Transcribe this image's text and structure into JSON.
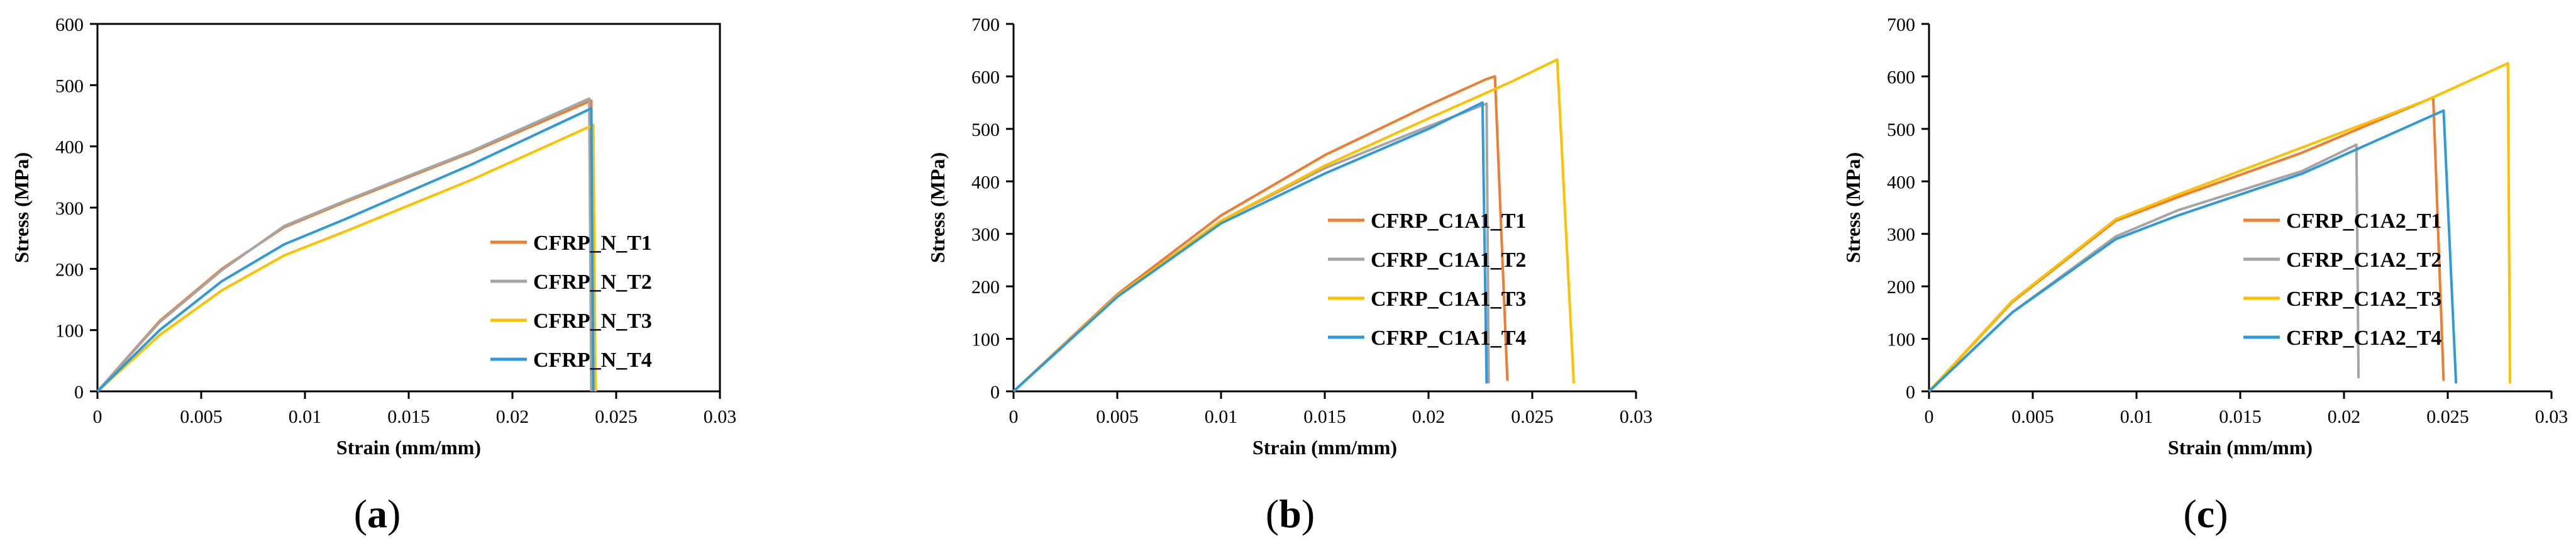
{
  "colors": {
    "T1": "#ED7D31",
    "T2": "#A5A5A5",
    "T3": "#FFC000",
    "T4": "#2E9BD8"
  },
  "chart_data": [
    {
      "type": "line",
      "caption_open": "(",
      "caption_letter": "a",
      "caption_close": ")",
      "xlabel": "Strain (mm/mm)",
      "ylabel": "Stress (MPa)",
      "xlim": [
        0,
        0.03
      ],
      "ylim": [
        0,
        600
      ],
      "xticks": [
        0,
        0.005,
        0.01,
        0.015,
        0.02,
        0.025,
        0.03
      ],
      "xtick_labels": [
        "0",
        "0.005",
        "0.01",
        "0.015",
        "0.02",
        "0.025",
        "0.03"
      ],
      "yticks": [
        0,
        100,
        200,
        300,
        400,
        500,
        600
      ],
      "ytick_labels": [
        "0",
        "100",
        "200",
        "300",
        "400",
        "500",
        "600"
      ],
      "boxed": true,
      "legend_position": "lower-right",
      "series": [
        {
          "name": "CFRP_N_T1",
          "color_key": "T1",
          "points": [
            [
              0,
              0
            ],
            [
              0.003,
              115
            ],
            [
              0.006,
              200
            ],
            [
              0.009,
              268
            ],
            [
              0.012,
              310
            ],
            [
              0.018,
              390
            ],
            [
              0.0238,
              475
            ],
            [
              0.0239,
              0
            ]
          ]
        },
        {
          "name": "CFRP_N_T2",
          "color_key": "T2",
          "points": [
            [
              0,
              0
            ],
            [
              0.003,
              113
            ],
            [
              0.006,
              198
            ],
            [
              0.009,
              270
            ],
            [
              0.012,
              312
            ],
            [
              0.018,
              392
            ],
            [
              0.0237,
              478
            ],
            [
              0.0238,
              0
            ]
          ]
        },
        {
          "name": "CFRP_N_T3",
          "color_key": "T3",
          "points": [
            [
              0,
              0
            ],
            [
              0.003,
              92
            ],
            [
              0.006,
              165
            ],
            [
              0.009,
              222
            ],
            [
              0.012,
              262
            ],
            [
              0.018,
              345
            ],
            [
              0.0239,
              435
            ],
            [
              0.024,
              0
            ]
          ]
        },
        {
          "name": "CFRP_N_T4",
          "color_key": "T4",
          "points": [
            [
              0,
              0
            ],
            [
              0.003,
              100
            ],
            [
              0.006,
              180
            ],
            [
              0.009,
              240
            ],
            [
              0.012,
              282
            ],
            [
              0.018,
              370
            ],
            [
              0.0238,
              462
            ],
            [
              0.0239,
              0
            ]
          ]
        }
      ]
    },
    {
      "type": "line",
      "caption_open": "(",
      "caption_letter": "b",
      "caption_close": ")",
      "xlabel": "Strain (mm/mm)",
      "ylabel": "Stress (MPa)",
      "xlim": [
        0,
        0.03
      ],
      "ylim": [
        0,
        700
      ],
      "xticks": [
        0,
        0.005,
        0.01,
        0.015,
        0.02,
        0.025,
        0.03
      ],
      "xtick_labels": [
        "0",
        "0.005",
        "0.01",
        "0.015",
        "0.02",
        "0.025",
        "0.03"
      ],
      "yticks": [
        0,
        100,
        200,
        300,
        400,
        500,
        600,
        700
      ],
      "ytick_labels": [
        "0",
        "100",
        "200",
        "300",
        "400",
        "500",
        "600",
        "700"
      ],
      "boxed": false,
      "legend_position": "lower-right",
      "series": [
        {
          "name": "CFRP_C1A1_T1",
          "color_key": "T1",
          "points": [
            [
              0,
              0
            ],
            [
              0.005,
              185
            ],
            [
              0.01,
              335
            ],
            [
              0.015,
              450
            ],
            [
              0.02,
              545
            ],
            [
              0.0228,
              595
            ],
            [
              0.0232,
              600
            ],
            [
              0.0238,
              20
            ]
          ]
        },
        {
          "name": "CFRP_C1A1_T2",
          "color_key": "T2",
          "points": [
            [
              0,
              0
            ],
            [
              0.005,
              182
            ],
            [
              0.01,
              325
            ],
            [
              0.015,
              425
            ],
            [
              0.02,
              505
            ],
            [
              0.0228,
              548
            ],
            [
              0.0229,
              15
            ]
          ]
        },
        {
          "name": "CFRP_C1A1_T3",
          "color_key": "T3",
          "points": [
            [
              0,
              0
            ],
            [
              0.005,
              182
            ],
            [
              0.01,
              325
            ],
            [
              0.015,
              430
            ],
            [
              0.02,
              520
            ],
            [
              0.024,
              590
            ],
            [
              0.0262,
              632
            ],
            [
              0.027,
              15
            ]
          ]
        },
        {
          "name": "CFRP_C1A1_T4",
          "color_key": "T4",
          "points": [
            [
              0,
              0
            ],
            [
              0.005,
              180
            ],
            [
              0.01,
              320
            ],
            [
              0.015,
              415
            ],
            [
              0.02,
              500
            ],
            [
              0.0226,
              550
            ],
            [
              0.0228,
              15
            ]
          ]
        }
      ]
    },
    {
      "type": "line",
      "caption_open": "(",
      "caption_letter": "c",
      "caption_close": ")",
      "xlabel": "Strain (mm/mm)",
      "ylabel": "Stress (MPa)",
      "xlim": [
        0,
        0.03
      ],
      "ylim": [
        0,
        700
      ],
      "xticks": [
        0,
        0.005,
        0.01,
        0.015,
        0.02,
        0.025,
        0.03
      ],
      "xtick_labels": [
        "0",
        "0.005",
        "0.01",
        "0.015",
        "0.02",
        "0.025",
        "0.03"
      ],
      "yticks": [
        0,
        100,
        200,
        300,
        400,
        500,
        600,
        700
      ],
      "ytick_labels": [
        "0",
        "100",
        "200",
        "300",
        "400",
        "500",
        "600",
        "700"
      ],
      "boxed": false,
      "legend_position": "lower-right",
      "series": [
        {
          "name": "CFRP_C1A2_T1",
          "color_key": "T1",
          "points": [
            [
              0,
              0
            ],
            [
              0.004,
              170
            ],
            [
              0.009,
              325
            ],
            [
              0.012,
              370
            ],
            [
              0.018,
              455
            ],
            [
              0.0243,
              560
            ],
            [
              0.0248,
              20
            ]
          ]
        },
        {
          "name": "CFRP_C1A2_T2",
          "color_key": "T2",
          "points": [
            [
              0,
              0
            ],
            [
              0.004,
              150
            ],
            [
              0.009,
              295
            ],
            [
              0.012,
              345
            ],
            [
              0.018,
              420
            ],
            [
              0.0206,
              470
            ],
            [
              0.0207,
              25
            ]
          ]
        },
        {
          "name": "CFRP_C1A2_T3",
          "color_key": "T3",
          "points": [
            [
              0,
              0
            ],
            [
              0.004,
              172
            ],
            [
              0.009,
              328
            ],
            [
              0.012,
              375
            ],
            [
              0.018,
              465
            ],
            [
              0.024,
              555
            ],
            [
              0.0279,
              625
            ],
            [
              0.028,
              15
            ]
          ]
        },
        {
          "name": "CFRP_C1A2_T4",
          "color_key": "T4",
          "points": [
            [
              0,
              0
            ],
            [
              0.004,
              150
            ],
            [
              0.009,
              290
            ],
            [
              0.012,
              335
            ],
            [
              0.018,
              415
            ],
            [
              0.0248,
              535
            ],
            [
              0.0254,
              15
            ]
          ]
        }
      ]
    }
  ]
}
